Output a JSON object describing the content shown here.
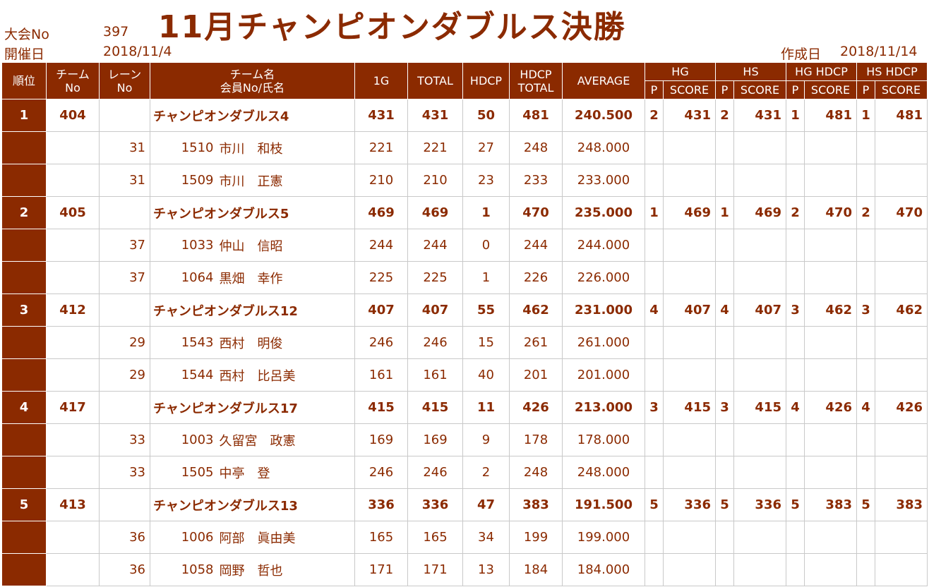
{
  "header": {
    "taikai_label": "大会No",
    "taikai_no": "397",
    "date_label": "開催日",
    "date": "2018/11/4",
    "title": "11月チャンピオンダブルス決勝",
    "created_label": "作成日",
    "created_date": "2018/11/14"
  },
  "columns": {
    "rank": "順位",
    "team_no_1": "チーム",
    "team_no_2": "No",
    "lane_1": "レーン",
    "lane_2": "No",
    "name_1": "チーム名",
    "name_2": "会員No/氏名",
    "g1": "1G",
    "total": "TOTAL",
    "hdcp": "HDCP",
    "hdcp_total_1": "HDCP",
    "hdcp_total_2": "TOTAL",
    "average": "AVERAGE",
    "hg": "HG",
    "hs": "HS",
    "hg_hdcp": "HG HDCP",
    "hs_hdcp": "HS HDCP",
    "p": "P",
    "score": "SCORE"
  },
  "teams": [
    {
      "rank": "1",
      "team_no": "404",
      "name": "チャンピオンダブルス4",
      "g1": "431",
      "total": "431",
      "hdcp": "50",
      "hdcp_total": "481",
      "average": "240.500",
      "hg_p": "2",
      "hg_score": "431",
      "hs_p": "2",
      "hs_score": "431",
      "hgh_p": "1",
      "hgh_score": "481",
      "hsh_p": "1",
      "hsh_score": "481",
      "members": [
        {
          "lane": "31",
          "no": "1510",
          "name": "市川　和枝",
          "g1": "221",
          "total": "221",
          "hdcp": "27",
          "hdcp_total": "248",
          "average": "248.000"
        },
        {
          "lane": "31",
          "no": "1509",
          "name": "市川　正憲",
          "g1": "210",
          "total": "210",
          "hdcp": "23",
          "hdcp_total": "233",
          "average": "233.000"
        }
      ]
    },
    {
      "rank": "2",
      "team_no": "405",
      "name": "チャンピオンダブルス5",
      "g1": "469",
      "total": "469",
      "hdcp": "1",
      "hdcp_total": "470",
      "average": "235.000",
      "hg_p": "1",
      "hg_score": "469",
      "hs_p": "1",
      "hs_score": "469",
      "hgh_p": "2",
      "hgh_score": "470",
      "hsh_p": "2",
      "hsh_score": "470",
      "members": [
        {
          "lane": "37",
          "no": "1033",
          "name": "仲山　信昭",
          "g1": "244",
          "total": "244",
          "hdcp": "0",
          "hdcp_total": "244",
          "average": "244.000"
        },
        {
          "lane": "37",
          "no": "1064",
          "name": "黒畑　幸作",
          "g1": "225",
          "total": "225",
          "hdcp": "1",
          "hdcp_total": "226",
          "average": "226.000"
        }
      ]
    },
    {
      "rank": "3",
      "team_no": "412",
      "name": "チャンピオンダブルス12",
      "g1": "407",
      "total": "407",
      "hdcp": "55",
      "hdcp_total": "462",
      "average": "231.000",
      "hg_p": "4",
      "hg_score": "407",
      "hs_p": "4",
      "hs_score": "407",
      "hgh_p": "3",
      "hgh_score": "462",
      "hsh_p": "3",
      "hsh_score": "462",
      "members": [
        {
          "lane": "29",
          "no": "1543",
          "name": "西村　明俊",
          "g1": "246",
          "total": "246",
          "hdcp": "15",
          "hdcp_total": "261",
          "average": "261.000"
        },
        {
          "lane": "29",
          "no": "1544",
          "name": "西村　比呂美",
          "g1": "161",
          "total": "161",
          "hdcp": "40",
          "hdcp_total": "201",
          "average": "201.000"
        }
      ]
    },
    {
      "rank": "4",
      "team_no": "417",
      "name": "チャンピオンダブルス17",
      "g1": "415",
      "total": "415",
      "hdcp": "11",
      "hdcp_total": "426",
      "average": "213.000",
      "hg_p": "3",
      "hg_score": "415",
      "hs_p": "3",
      "hs_score": "415",
      "hgh_p": "4",
      "hgh_score": "426",
      "hsh_p": "4",
      "hsh_score": "426",
      "members": [
        {
          "lane": "33",
          "no": "1003",
          "name": "久留宮　政憲",
          "g1": "169",
          "total": "169",
          "hdcp": "9",
          "hdcp_total": "178",
          "average": "178.000"
        },
        {
          "lane": "33",
          "no": "1505",
          "name": "中亭　登",
          "g1": "246",
          "total": "246",
          "hdcp": "2",
          "hdcp_total": "248",
          "average": "248.000"
        }
      ]
    },
    {
      "rank": "5",
      "team_no": "413",
      "name": "チャンピオンダブルス13",
      "g1": "336",
      "total": "336",
      "hdcp": "47",
      "hdcp_total": "383",
      "average": "191.500",
      "hg_p": "5",
      "hg_score": "336",
      "hs_p": "5",
      "hs_score": "336",
      "hgh_p": "5",
      "hgh_score": "383",
      "hsh_p": "5",
      "hsh_score": "383",
      "members": [
        {
          "lane": "36",
          "no": "1006",
          "name": "阿部　眞由美",
          "g1": "165",
          "total": "165",
          "hdcp": "34",
          "hdcp_total": "199",
          "average": "199.000"
        },
        {
          "lane": "36",
          "no": "1058",
          "name": "岡野　哲也",
          "g1": "171",
          "total": "171",
          "hdcp": "13",
          "hdcp_total": "184",
          "average": "184.000"
        }
      ]
    }
  ]
}
